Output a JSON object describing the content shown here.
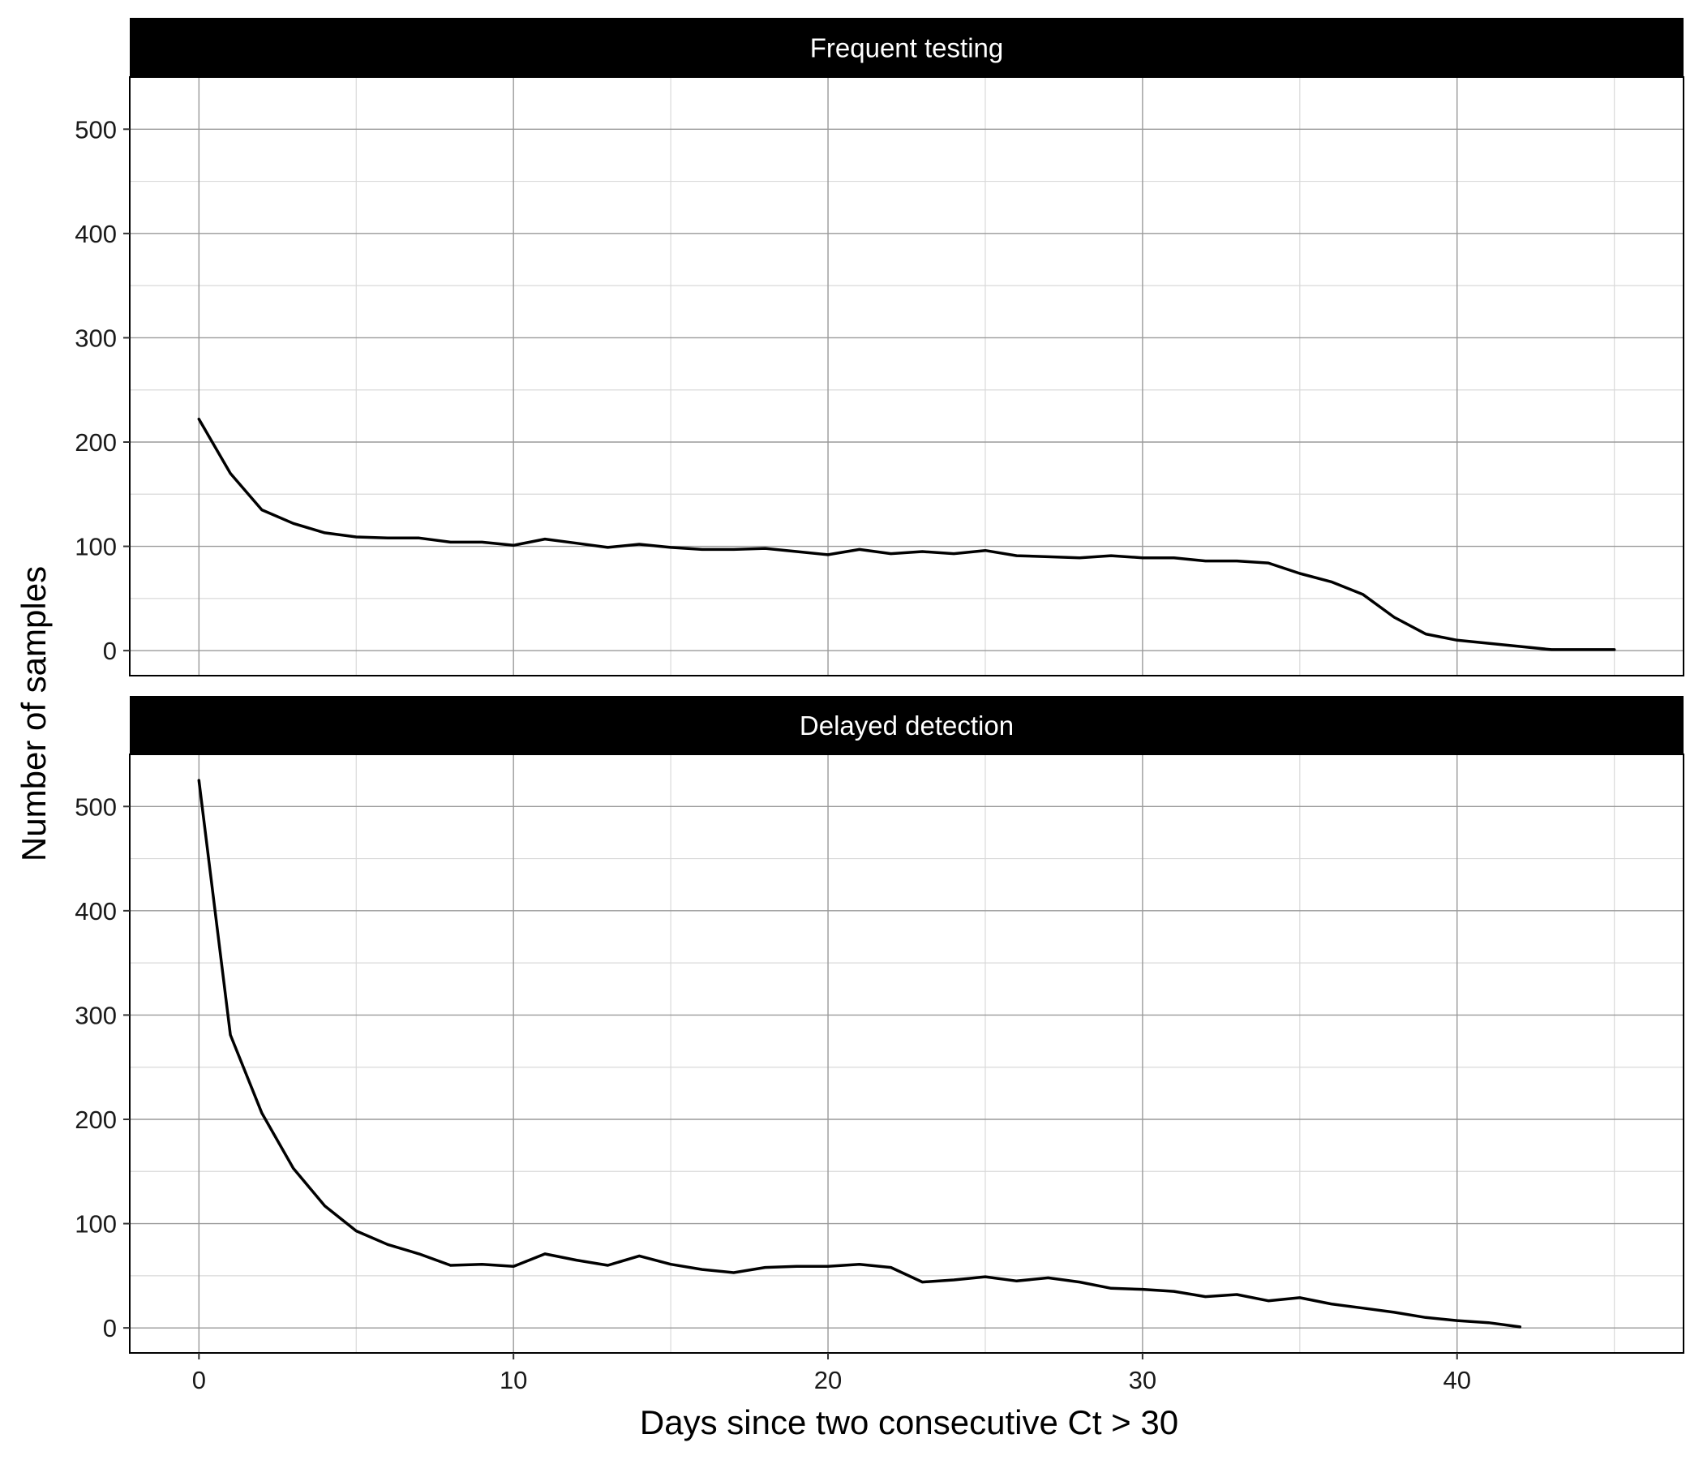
{
  "chart_data": {
    "type": "line",
    "facet_wrap": "vertical",
    "xlabel": "Days since two consecutive Ct > 30",
    "ylabel": "Number of samples",
    "xlim": [
      -2.2,
      47.2
    ],
    "ylim": [
      -24,
      550
    ],
    "x_ticks": [
      0,
      10,
      20,
      30,
      40
    ],
    "x_minor": [
      5,
      15,
      25,
      35,
      45
    ],
    "y_ticks": [
      0,
      100,
      200,
      300,
      400,
      500
    ],
    "y_minor": [
      50,
      150,
      250,
      350,
      450
    ],
    "grid": true,
    "line_color": "#000000",
    "panels": [
      {
        "title": "Frequent testing",
        "x": [
          0,
          1,
          2,
          3,
          4,
          5,
          6,
          7,
          8,
          9,
          10,
          11,
          12,
          13,
          14,
          15,
          16,
          17,
          18,
          19,
          20,
          21,
          22,
          23,
          24,
          25,
          26,
          27,
          28,
          29,
          30,
          31,
          32,
          33,
          34,
          35,
          36,
          37,
          38,
          39,
          40,
          41,
          42,
          43,
          44,
          45
        ],
        "y": [
          222,
          170,
          135,
          122,
          113,
          109,
          108,
          108,
          104,
          104,
          101,
          107,
          103,
          99,
          102,
          99,
          97,
          97,
          98,
          95,
          92,
          97,
          93,
          95,
          93,
          96,
          91,
          90,
          89,
          91,
          89,
          89,
          86,
          86,
          84,
          74,
          66,
          54,
          32,
          16,
          10,
          7,
          4,
          1,
          1,
          1
        ]
      },
      {
        "title": "Delayed detection",
        "x": [
          0,
          1,
          2,
          3,
          4,
          5,
          6,
          7,
          8,
          9,
          10,
          11,
          12,
          13,
          14,
          15,
          16,
          17,
          18,
          19,
          20,
          21,
          22,
          23,
          24,
          25,
          26,
          27,
          28,
          29,
          30,
          31,
          32,
          33,
          34,
          35,
          36,
          37,
          38,
          39,
          40,
          41,
          42
        ],
        "y": [
          525,
          281,
          206,
          153,
          117,
          93,
          80,
          71,
          60,
          61,
          59,
          71,
          65,
          60,
          69,
          61,
          56,
          53,
          58,
          59,
          59,
          61,
          58,
          44,
          46,
          49,
          45,
          48,
          44,
          38,
          37,
          35,
          30,
          32,
          26,
          29,
          23,
          19,
          15,
          10,
          7,
          5,
          1
        ]
      }
    ]
  }
}
